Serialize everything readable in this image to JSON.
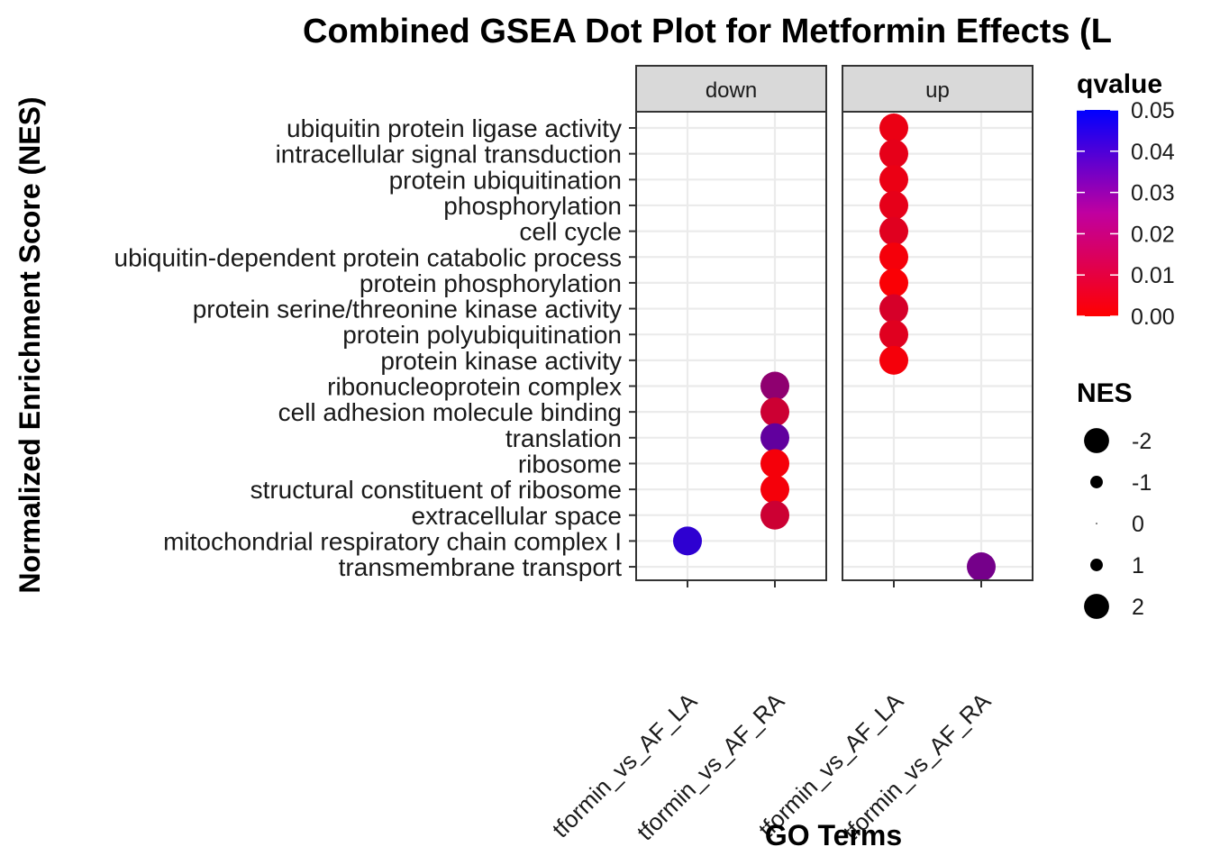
{
  "chart_data": {
    "type": "scatter",
    "title": "Combined GSEA Dot Plot for Metformin Effects (L",
    "xlabel": "GO Terms",
    "ylabel": "Normalized Enrichment Score (NES)",
    "facets": [
      "down",
      "up"
    ],
    "x_tick_labels": [
      "tformin_vs_AF_LA",
      "tformin_vs_AF_RA"
    ],
    "y_categories": [
      "ubiquitin protein ligase activity",
      "intracellular signal transduction",
      "protein ubiquitination",
      "phosphorylation",
      "cell cycle",
      "ubiquitin-dependent protein catabolic process",
      "protein phosphorylation",
      "protein serine/threonine kinase activity",
      "protein polyubiquitination",
      "protein kinase activity",
      "ribonucleoprotein complex",
      "cell adhesion molecule binding",
      "translation",
      "ribosome",
      "structural constituent of ribosome",
      "extracellular space",
      "mitochondrial respiratory chain complex I",
      "transmembrane transport"
    ],
    "points": [
      {
        "facet": "up",
        "x": 0,
        "term": "ubiquitin protein ligase activity",
        "qvalue": 0.004,
        "nes": 2.3
      },
      {
        "facet": "up",
        "x": 0,
        "term": "intracellular signal transduction",
        "qvalue": 0.005,
        "nes": 2.3
      },
      {
        "facet": "up",
        "x": 0,
        "term": "protein ubiquitination",
        "qvalue": 0.004,
        "nes": 2.3
      },
      {
        "facet": "up",
        "x": 0,
        "term": "phosphorylation",
        "qvalue": 0.005,
        "nes": 2.3
      },
      {
        "facet": "up",
        "x": 0,
        "term": "cell cycle",
        "qvalue": 0.006,
        "nes": 2.3
      },
      {
        "facet": "up",
        "x": 0,
        "term": "ubiquitin-dependent protein catabolic process",
        "qvalue": 0.002,
        "nes": 2.3
      },
      {
        "facet": "up",
        "x": 0,
        "term": "protein phosphorylation",
        "qvalue": 0.001,
        "nes": 2.3
      },
      {
        "facet": "up",
        "x": 0,
        "term": "protein serine/threonine kinase activity",
        "qvalue": 0.008,
        "nes": 2.3
      },
      {
        "facet": "up",
        "x": 0,
        "term": "protein polyubiquitination",
        "qvalue": 0.006,
        "nes": 2.3
      },
      {
        "facet": "up",
        "x": 0,
        "term": "protein kinase activity",
        "qvalue": 0.002,
        "nes": 2.3
      },
      {
        "facet": "down",
        "x": 1,
        "term": "ribonucleoprotein complex",
        "qvalue": 0.022,
        "nes": -2.3
      },
      {
        "facet": "down",
        "x": 1,
        "term": "cell adhesion molecule binding",
        "qvalue": 0.01,
        "nes": -2.3
      },
      {
        "facet": "down",
        "x": 1,
        "term": "translation",
        "qvalue": 0.031,
        "nes": -2.3
      },
      {
        "facet": "down",
        "x": 1,
        "term": "ribosome",
        "qvalue": 0.002,
        "nes": -2.3
      },
      {
        "facet": "down",
        "x": 1,
        "term": "structural constituent of ribosome",
        "qvalue": 0.002,
        "nes": -2.3
      },
      {
        "facet": "down",
        "x": 1,
        "term": "extracellular space",
        "qvalue": 0.01,
        "nes": -2.3
      },
      {
        "facet": "down",
        "x": 0,
        "term": "mitochondrial respiratory chain complex I",
        "qvalue": 0.041,
        "nes": -2.3
      },
      {
        "facet": "up",
        "x": 1,
        "term": "transmembrane transport",
        "qvalue": 0.027,
        "nes": 2.3
      }
    ],
    "legend_color": {
      "title": "qvalue",
      "ticks": [
        "0.05",
        "0.04",
        "0.03",
        "0.02",
        "0.01",
        "0.00"
      ],
      "range": [
        0,
        0.05
      ],
      "low_color": "#ff0000",
      "high_color": "#0000ff"
    },
    "legend_size": {
      "title": "NES",
      "labels": [
        "-2",
        "-1",
        "0",
        "1",
        "2"
      ],
      "values": [
        -2,
        -1,
        0,
        1,
        2
      ]
    },
    "grid": true
  }
}
